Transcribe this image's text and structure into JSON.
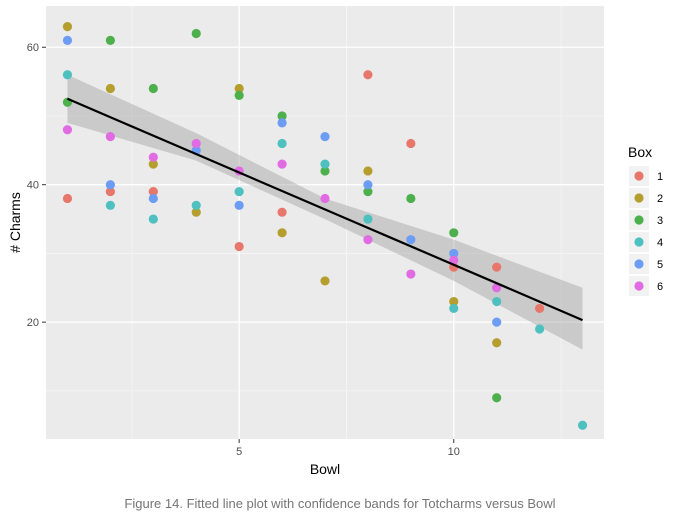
{
  "caption": "Figure 14. Fitted line plot with confidence bands for Totcharms versus Bowl",
  "chart_data": {
    "type": "scatter",
    "xlabel": "Bowl",
    "ylabel": "# Charms",
    "xlim": [
      0.5,
      13.5
    ],
    "ylim": [
      3,
      66
    ],
    "x_ticks": [
      5,
      10
    ],
    "y_ticks": [
      20,
      40,
      60
    ],
    "grid": true,
    "legend_title": "Box",
    "legend_position": "right",
    "colors": {
      "1": "#E7776B",
      "2": "#B49F2E",
      "3": "#4DB04D",
      "4": "#4EC0C0",
      "5": "#6D9CF5",
      "6": "#E06BE3"
    },
    "series": [
      {
        "name": "1",
        "points": [
          [
            1,
            38
          ],
          [
            2,
            39
          ],
          [
            3,
            39
          ],
          [
            5,
            31
          ],
          [
            6,
            36
          ],
          [
            8,
            56
          ],
          [
            9,
            46
          ],
          [
            10,
            28
          ],
          [
            11,
            28
          ],
          [
            12,
            22
          ]
        ]
      },
      {
        "name": "2",
        "points": [
          [
            1,
            63
          ],
          [
            2,
            54
          ],
          [
            3,
            43
          ],
          [
            4,
            36
          ],
          [
            5,
            54
          ],
          [
            6,
            33
          ],
          [
            7,
            26
          ],
          [
            8,
            42
          ],
          [
            10,
            23
          ],
          [
            11,
            17
          ]
        ]
      },
      {
        "name": "3",
        "points": [
          [
            1,
            52
          ],
          [
            2,
            61
          ],
          [
            3,
            54
          ],
          [
            4,
            62
          ],
          [
            5,
            53
          ],
          [
            6,
            50
          ],
          [
            7,
            42
          ],
          [
            8,
            39
          ],
          [
            9,
            38
          ],
          [
            10,
            33
          ],
          [
            11,
            9
          ]
        ]
      },
      {
        "name": "4",
        "points": [
          [
            1,
            56
          ],
          [
            2,
            37
          ],
          [
            3,
            35
          ],
          [
            4,
            37
          ],
          [
            5,
            39
          ],
          [
            6,
            46
          ],
          [
            7,
            43
          ],
          [
            8,
            35
          ],
          [
            10,
            22
          ],
          [
            11,
            23
          ],
          [
            12,
            19
          ],
          [
            13,
            5
          ]
        ]
      },
      {
        "name": "5",
        "points": [
          [
            1,
            61
          ],
          [
            2,
            40
          ],
          [
            3,
            38
          ],
          [
            4,
            45
          ],
          [
            5,
            37
          ],
          [
            6,
            49
          ],
          [
            7,
            47
          ],
          [
            8,
            40
          ],
          [
            9,
            32
          ],
          [
            10,
            30
          ],
          [
            11,
            20
          ]
        ]
      },
      {
        "name": "6",
        "points": [
          [
            1,
            48
          ],
          [
            2,
            47
          ],
          [
            3,
            44
          ],
          [
            4,
            46
          ],
          [
            5,
            42
          ],
          [
            6,
            43
          ],
          [
            7,
            38
          ],
          [
            8,
            32
          ],
          [
            9,
            27
          ],
          [
            10,
            29
          ],
          [
            11,
            25
          ]
        ]
      }
    ],
    "fit_line": {
      "x": [
        1,
        13
      ],
      "y": [
        52.5,
        20.3
      ]
    },
    "confidence_band": {
      "x": [
        1,
        4,
        7,
        10,
        13
      ],
      "lower": [
        49,
        43.5,
        35,
        26,
        16
      ],
      "upper": [
        56,
        47.5,
        38,
        32,
        25
      ]
    }
  }
}
